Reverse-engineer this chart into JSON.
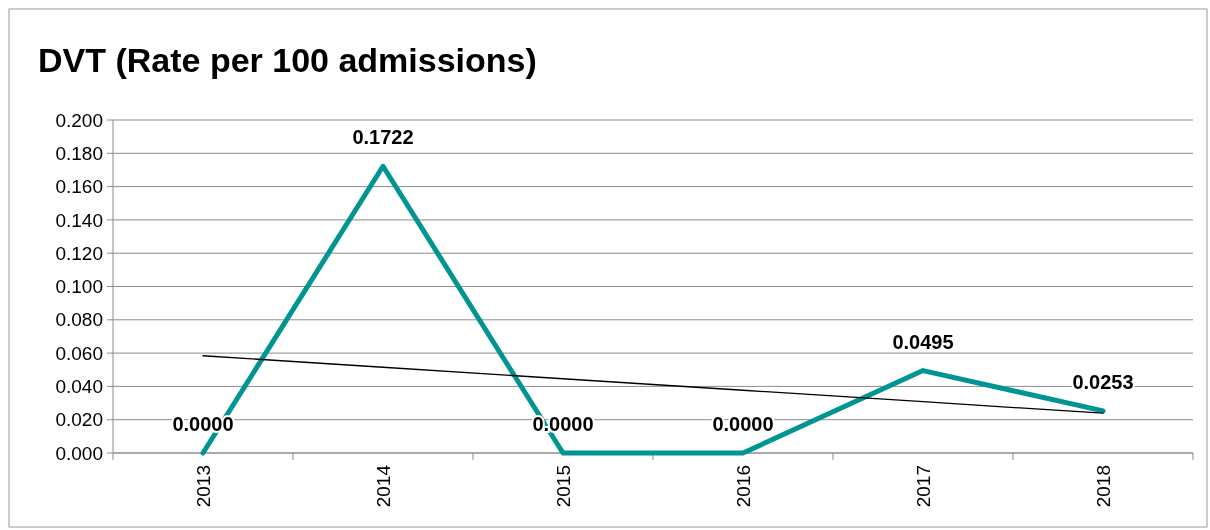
{
  "chart_data": {
    "type": "line",
    "title": "DVT (Rate per 100 admissions)",
    "categories": [
      "2013",
      "2014",
      "2015",
      "2016",
      "2017",
      "2018"
    ],
    "series": [
      {
        "color": "#009593",
        "values": [
          0,
          0.1722,
          0,
          0,
          0.0495,
          0.0253
        ],
        "value_labels": [
          "0.0000",
          "0.1722",
          "0.0000",
          "0.0000",
          "0.0495",
          "0.0253"
        ]
      },
      {
        "type": "line",
        "color": "#000000",
        "values": [
          0.0584,
          0.0515,
          0.0446,
          0.0377,
          0.0308,
          0.0239
        ]
      }
    ],
    "ylim": [
      0,
      0.2
    ],
    "yticks": [
      {
        "value": 0,
        "label": "0.000"
      },
      {
        "value": 0.02,
        "label": "0.020"
      },
      {
        "value": 0.04,
        "label": "0.040"
      },
      {
        "value": 0.06,
        "label": "0.060"
      },
      {
        "value": 0.08,
        "label": "0.080"
      },
      {
        "value": 0.1,
        "label": "0.100"
      },
      {
        "value": 0.12,
        "label": "0.120"
      },
      {
        "value": 0.14,
        "label": "0.140"
      },
      {
        "value": 0.16,
        "label": "0.160"
      },
      {
        "value": 0.18,
        "label": "0.180"
      },
      {
        "value": 0.2,
        "label": "0.200"
      }
    ],
    "grid": "y",
    "marker": "none"
  }
}
